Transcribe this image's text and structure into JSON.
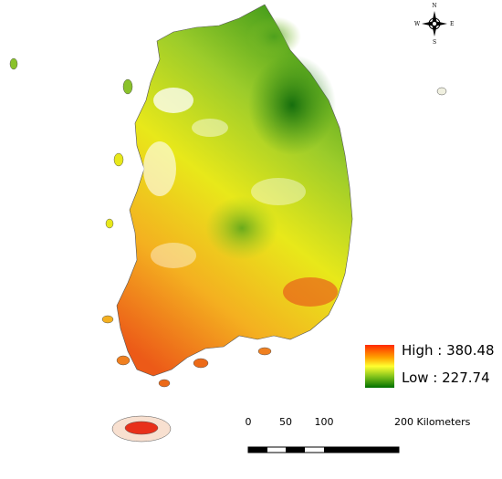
{
  "compass": {
    "north": "N",
    "south": "S",
    "east": "E",
    "west": "W"
  },
  "legend": {
    "high": "High : 380.48",
    "low": "Low : 227.74"
  },
  "scale_bar": {
    "labels": [
      "0",
      "50",
      "100",
      "200 Kilometers"
    ]
  }
}
